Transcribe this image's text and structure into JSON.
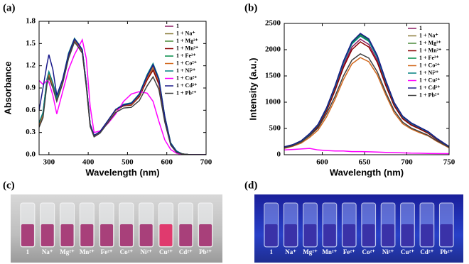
{
  "chart_data": [
    {
      "type": "line",
      "panel_label": "(a)",
      "x_label": "Wavelength (nm)",
      "y_label": "Absorbance",
      "legend": "upper right",
      "x": [
        275,
        285,
        295,
        300,
        310,
        320,
        335,
        350,
        365,
        375,
        385,
        395,
        405,
        415,
        430,
        450,
        470,
        490,
        510,
        530,
        550,
        565,
        580,
        595,
        610,
        625,
        640,
        660,
        680,
        700
      ],
      "xlim": [
        275,
        700
      ],
      "xticks": [
        300,
        400,
        500,
        600,
        700
      ],
      "ylim": [
        0,
        1.8
      ],
      "yticks": [
        {
          "value": 0,
          "label": "0.0"
        },
        0.3,
        0.6,
        0.9,
        1.2,
        1.5,
        1.8
      ],
      "series": [
        {
          "name": "1",
          "color": "#8b1c62",
          "values": [
            0.4,
            0.55,
            1.0,
            1.1,
            0.95,
            0.75,
            1.0,
            1.35,
            1.55,
            1.48,
            1.4,
            0.95,
            0.4,
            0.25,
            0.3,
            0.45,
            0.6,
            0.67,
            0.68,
            0.8,
            1.05,
            1.18,
            1.0,
            0.5,
            0.15,
            0.04,
            0.01,
            0,
            0,
            0
          ]
        },
        {
          "name": "1 + Na⁺",
          "color": "#8b7d3a",
          "values": [
            0.38,
            0.52,
            0.98,
            1.08,
            0.93,
            0.73,
            0.98,
            1.33,
            1.54,
            1.47,
            1.39,
            0.94,
            0.4,
            0.25,
            0.3,
            0.45,
            0.6,
            0.66,
            0.67,
            0.79,
            1.03,
            1.17,
            0.98,
            0.49,
            0.15,
            0.04,
            0.01,
            0,
            0,
            0
          ]
        },
        {
          "name": "1 + Mg²⁺",
          "color": "#4a8a3a",
          "values": [
            0.42,
            0.56,
            1.01,
            1.11,
            0.96,
            0.76,
            1.01,
            1.36,
            1.56,
            1.49,
            1.41,
            0.96,
            0.41,
            0.26,
            0.31,
            0.46,
            0.61,
            0.68,
            0.69,
            0.82,
            1.07,
            1.22,
            1.02,
            0.51,
            0.16,
            0.04,
            0.01,
            0,
            0,
            0
          ]
        },
        {
          "name": "1 + Mn²⁺",
          "color": "#8b0000",
          "values": [
            0.41,
            0.55,
            1.0,
            1.09,
            0.94,
            0.74,
            0.99,
            1.34,
            1.55,
            1.48,
            1.4,
            0.95,
            0.4,
            0.25,
            0.3,
            0.45,
            0.6,
            0.66,
            0.67,
            0.78,
            1.01,
            1.14,
            0.95,
            0.48,
            0.14,
            0.04,
            0.01,
            0,
            0,
            0
          ]
        },
        {
          "name": "1 + Fe²⁺",
          "color": "#008b45",
          "values": [
            0.4,
            0.55,
            1.0,
            1.1,
            0.95,
            0.75,
            1.0,
            1.35,
            1.55,
            1.48,
            1.4,
            0.95,
            0.4,
            0.25,
            0.3,
            0.45,
            0.6,
            0.67,
            0.68,
            0.8,
            1.05,
            1.21,
            1.0,
            0.5,
            0.15,
            0.04,
            0.01,
            0,
            0,
            0
          ]
        },
        {
          "name": "1 + Co²⁺",
          "color": "#d2691e",
          "values": [
            0.39,
            0.53,
            0.99,
            1.09,
            0.94,
            0.74,
            0.99,
            1.34,
            1.55,
            1.47,
            1.39,
            0.94,
            0.39,
            0.25,
            0.3,
            0.45,
            0.6,
            0.67,
            0.68,
            0.8,
            1.04,
            1.19,
            0.99,
            0.5,
            0.15,
            0.04,
            0.01,
            0,
            0,
            0
          ]
        },
        {
          "name": "1 + Ni²⁺",
          "color": "#008080",
          "values": [
            0.43,
            0.57,
            1.02,
            1.12,
            0.97,
            0.77,
            1.02,
            1.37,
            1.57,
            1.5,
            1.42,
            0.96,
            0.41,
            0.26,
            0.31,
            0.46,
            0.61,
            0.68,
            0.7,
            0.82,
            1.08,
            1.23,
            1.03,
            0.52,
            0.16,
            0.05,
            0.01,
            0,
            0,
            0
          ]
        },
        {
          "name": "1 + Cu²⁺",
          "color": "#ff00ff",
          "values": [
            1.0,
            0.95,
            1.0,
            0.98,
            0.8,
            0.55,
            0.85,
            1.15,
            1.35,
            1.45,
            1.55,
            1.3,
            0.65,
            0.3,
            0.32,
            0.42,
            0.55,
            0.72,
            0.82,
            0.85,
            0.83,
            0.72,
            0.45,
            0.2,
            0.07,
            0.02,
            0,
            0,
            0,
            0
          ]
        },
        {
          "name": "1 + Cd²⁺",
          "color": "#1a1a8b",
          "values": [
            0.6,
            0.9,
            1.22,
            1.35,
            1.15,
            0.8,
            1.02,
            1.35,
            1.56,
            1.49,
            1.41,
            0.96,
            0.41,
            0.26,
            0.31,
            0.46,
            0.61,
            0.67,
            0.69,
            0.81,
            1.06,
            1.21,
            1.01,
            0.51,
            0.15,
            0.04,
            0.01,
            0,
            0,
            0
          ]
        },
        {
          "name": "1 + Pb²⁺",
          "color": "#404040",
          "values": [
            0.37,
            0.5,
            0.95,
            1.04,
            0.9,
            0.72,
            0.96,
            1.3,
            1.52,
            1.45,
            1.37,
            0.92,
            0.38,
            0.24,
            0.29,
            0.43,
            0.57,
            0.63,
            0.64,
            0.73,
            0.93,
            1.05,
            0.88,
            0.44,
            0.13,
            0.03,
            0.01,
            0,
            0,
            0
          ]
        }
      ]
    },
    {
      "type": "line",
      "panel_label": "(b)",
      "x_label": "Wavelength (nm)",
      "y_label": "Intensity (a.u.)",
      "legend": "upper right",
      "x": [
        555,
        565,
        575,
        585,
        595,
        605,
        615,
        625,
        635,
        645,
        655,
        665,
        675,
        685,
        695,
        705,
        715,
        725,
        735,
        750
      ],
      "xlim": [
        555,
        750
      ],
      "xticks": [
        600,
        650,
        700,
        750
      ],
      "ylim": [
        0,
        2500
      ],
      "yticks": [
        0,
        500,
        1000,
        1500,
        2000,
        2500
      ],
      "series": [
        {
          "name": "1",
          "color": "#8b1c62",
          "values": [
            140,
            180,
            250,
            380,
            550,
            850,
            1250,
            1700,
            2050,
            2200,
            2100,
            1800,
            1350,
            950,
            700,
            580,
            500,
            420,
            300,
            150
          ]
        },
        {
          "name": "1 + Na⁺",
          "color": "#8b7d3a",
          "values": [
            145,
            185,
            260,
            395,
            570,
            880,
            1295,
            1760,
            2125,
            2280,
            2175,
            1865,
            1400,
            985,
            725,
            600,
            520,
            435,
            310,
            155
          ]
        },
        {
          "name": "1 + Mg²⁺",
          "color": "#4a8a3a",
          "values": [
            150,
            190,
            265,
            400,
            575,
            890,
            1305,
            1775,
            2145,
            2300,
            2195,
            1880,
            1410,
            990,
            730,
            605,
            520,
            440,
            315,
            155
          ]
        },
        {
          "name": "1 + Mn²⁺",
          "color": "#8b0000",
          "values": [
            135,
            175,
            245,
            370,
            535,
            830,
            1220,
            1660,
            2000,
            2150,
            2050,
            1760,
            1320,
            930,
            685,
            565,
            490,
            410,
            295,
            145
          ]
        },
        {
          "name": "1 + Fe²⁺",
          "color": "#008b45",
          "values": [
            148,
            188,
            262,
            398,
            572,
            885,
            1300,
            1770,
            2135,
            2290,
            2185,
            1875,
            1405,
            988,
            728,
            602,
            520,
            438,
            312,
            155
          ]
        },
        {
          "name": "1 + Co²⁺",
          "color": "#d2691e",
          "values": [
            120,
            160,
            220,
            330,
            470,
            720,
            1050,
            1430,
            1730,
            1850,
            1770,
            1520,
            1140,
            800,
            590,
            490,
            420,
            360,
            260,
            130
          ]
        },
        {
          "name": "1 + Ni²⁺",
          "color": "#008080",
          "values": [
            145,
            185,
            258,
            392,
            565,
            875,
            1285,
            1750,
            2110,
            2260,
            2160,
            1850,
            1390,
            978,
            720,
            595,
            515,
            432,
            308,
            152
          ]
        },
        {
          "name": "1 + Cu²⁺",
          "color": "#ff00ff",
          "values": [
            90,
            100,
            110,
            120,
            90,
            80,
            70,
            70,
            60,
            60,
            55,
            50,
            45,
            40,
            35,
            30,
            28,
            25,
            22,
            20
          ]
        },
        {
          "name": "1 + Cd²⁺",
          "color": "#1a1a8b",
          "values": [
            150,
            190,
            265,
            402,
            578,
            892,
            1310,
            1780,
            2150,
            2310,
            2205,
            1890,
            1418,
            995,
            735,
            608,
            525,
            442,
            316,
            156
          ]
        },
        {
          "name": "1 + Pb²⁺",
          "color": "#404040",
          "values": [
            130,
            170,
            240,
            360,
            510,
            780,
            1110,
            1500,
            1800,
            1920,
            1840,
            1580,
            1190,
            840,
            620,
            510,
            440,
            370,
            270,
            140
          ]
        }
      ]
    }
  ],
  "photos": [
    {
      "panel_label": "(c)",
      "labels": [
        "1",
        "Na⁺",
        "Mg²⁺",
        "Mn²⁺",
        "Fe²⁺",
        "Co²⁺",
        "Ni²⁺",
        "Cu²⁺",
        "Cd²⁺",
        "Pb²⁺"
      ]
    },
    {
      "panel_label": "(d)",
      "labels": [
        "1",
        "Na⁺",
        "Mg²⁺",
        "Mn²⁺",
        "Fe²⁺",
        "Co²⁺",
        "Ni²⁺",
        "Cu²⁺",
        "Cd²⁺",
        "Pb²⁺"
      ]
    }
  ]
}
